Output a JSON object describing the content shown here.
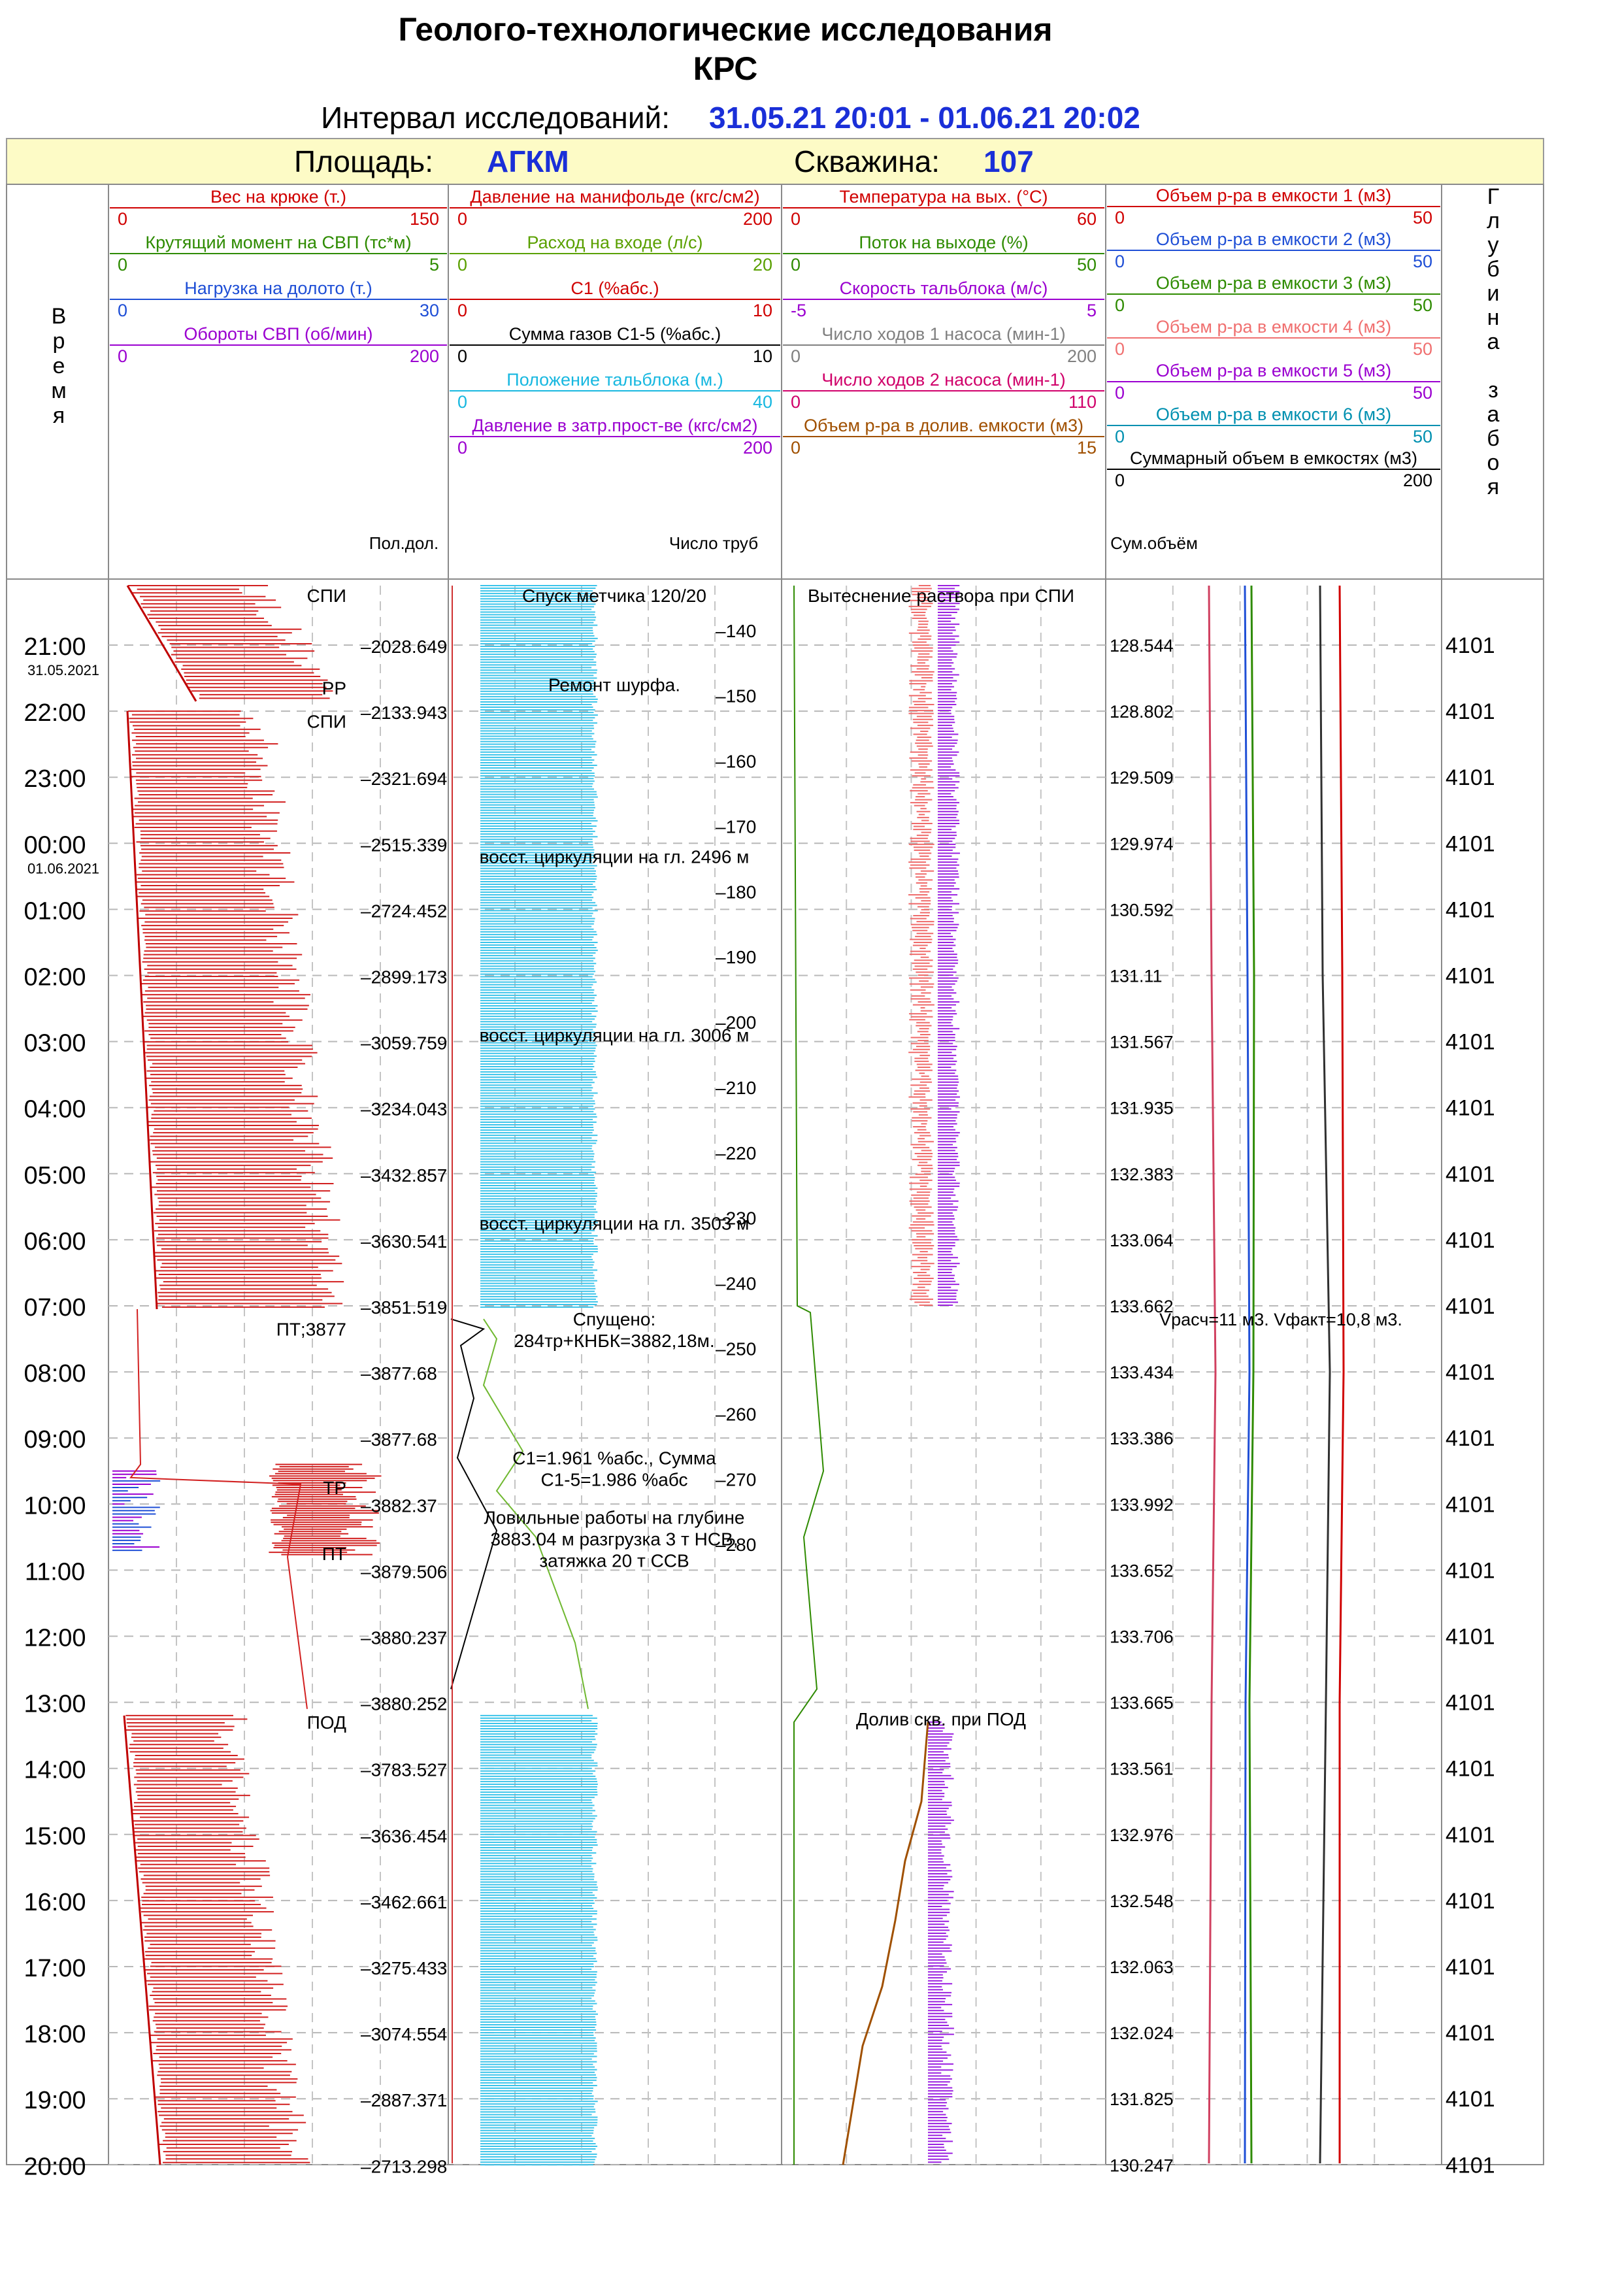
{
  "header": {
    "title1": "Геолого-технологические исследования",
    "title2": "КРС",
    "interval_label": "Интервал исследований:",
    "interval_value": "31.05.21 20:01 - 01.06.21 20:02",
    "area_label": "Площадь:",
    "area_value": "АГКМ",
    "well_label": "Скважина:",
    "well_value": "107"
  },
  "columns": {
    "time_title": [
      "В",
      "р",
      "е",
      "м",
      "я"
    ],
    "depth_title": [
      "Г",
      "л",
      "у",
      "б",
      "и",
      "н",
      "а",
      "",
      "з",
      "а",
      "б",
      "о",
      "я"
    ],
    "track1_footer": "Пол.дол.",
    "track2_footer": "Число труб",
    "track4_footer": "Сум.объём"
  },
  "tracks": [
    {
      "curves": [
        {
          "name": "Вес на крюке  (т.)",
          "min": "0",
          "max": "150",
          "color": "#d00000"
        },
        {
          "name": "Крутящий момент на СВП (тс*м)",
          "min": "0",
          "max": "5",
          "color": "#2e8b00"
        },
        {
          "name": "Нагрузка на долото (т.)",
          "min": "0",
          "max": "30",
          "color": "#1f4fd6"
        },
        {
          "name": "Обороты СВП (об/мин)",
          "min": "0",
          "max": "200",
          "color": "#9b00d0"
        }
      ]
    },
    {
      "curves": [
        {
          "name": "Давление на манифольде (кгс/см2)",
          "min": "0",
          "max": "200",
          "color": "#d00000"
        },
        {
          "name": "Расход на входе (л/с)",
          "min": "0",
          "max": "20",
          "color": "#5aa000"
        },
        {
          "name": "С1 (%абс.)",
          "min": "0",
          "max": "10",
          "color": "#d00000"
        },
        {
          "name": "Сумма газов С1-5 (%абс.)",
          "min": "0",
          "max": "10",
          "color": "#000000"
        },
        {
          "name": "Положение тальблока (м.)",
          "min": "0",
          "max": "40",
          "color": "#18b8e0"
        },
        {
          "name": "Давление в затр.прост-ве (кгс/см2)",
          "min": "0",
          "max": "200",
          "color": "#9b00d0"
        }
      ]
    },
    {
      "curves": [
        {
          "name": "Температура  на вых. (°С)",
          "min": "0",
          "max": "60",
          "color": "#d00000"
        },
        {
          "name": "Поток на выходе (%)",
          "min": "0",
          "max": "50",
          "color": "#2e8b00"
        },
        {
          "name": "Скорость тальблока (м/с)",
          "min": "-5",
          "max": "5",
          "color": "#9b00d0"
        },
        {
          "name": "Число ходов 1 насоса (мин-1)",
          "min": "0",
          "max": "200",
          "color": "#808080"
        },
        {
          "name": "Число ходов 2 насоса (мин-1)",
          "min": "0",
          "max": "110",
          "color": "#d0006a"
        },
        {
          "name": "Объем р-ра в долив. емкости (м3)",
          "min": "0",
          "max": "15",
          "color": "#a05000"
        }
      ]
    },
    {
      "curves": [
        {
          "name": "Объем р-ра в емкости 1 (м3)",
          "min": "0",
          "max": "50",
          "color": "#d00000"
        },
        {
          "name": "Объем р-ра в емкости 2 (м3)",
          "min": "0",
          "max": "50",
          "color": "#1f4fd6"
        },
        {
          "name": "Объем р-ра в емкости 3 (м3)",
          "min": "0",
          "max": "50",
          "color": "#2e8b00"
        },
        {
          "name": "Объем р-ра в емкости 4 (м3)",
          "min": "0",
          "max": "50",
          "color": "#f07070"
        },
        {
          "name": "Объем р-ра в емкости 5 (м3)",
          "min": "0",
          "max": "50",
          "color": "#9b00d0"
        },
        {
          "name": "Объем р-ра в емкости 6 (м3)",
          "min": "0",
          "max": "50",
          "color": "#0090b0"
        },
        {
          "name": "Суммарный объем в емкостях (м3)",
          "min": "0",
          "max": "200",
          "color": "#000000"
        }
      ]
    }
  ],
  "chart_data": {
    "type": "line",
    "y_axis": "time",
    "time_ticks": [
      "21:00",
      "22:00",
      "23:00",
      "00:00",
      "01:00",
      "02:00",
      "03:00",
      "04:00",
      "05:00",
      "06:00",
      "07:00",
      "08:00",
      "09:00",
      "10:00",
      "11:00",
      "12:00",
      "13:00",
      "14:00",
      "15:00",
      "16:00",
      "17:00",
      "18:00",
      "19:00",
      "20:00"
    ],
    "date_labels": [
      {
        "after_tick": "21:00",
        "text": "31.05.2021"
      },
      {
        "after_tick": "00:00",
        "text": "01.06.2021"
      }
    ],
    "bit_position": [
      "2028.649",
      "2133.943",
      "2321.694",
      "2515.339",
      "2724.452",
      "2899.173",
      "3059.759",
      "3234.043",
      "3432.857",
      "3630.541",
      "3851.519",
      "3877.68",
      "3877.68",
      "3882.37",
      "3879.506",
      "3880.237",
      "3880.252",
      "3783.527",
      "3636.454",
      "3462.661",
      "3275.433",
      "3074.554",
      "2887.371",
      "2713.298"
    ],
    "total_volume": [
      "128.544",
      "128.802",
      "129.509",
      "129.974",
      "130.592",
      "131.11",
      "131.567",
      "131.935",
      "132.383",
      "133.064",
      "133.662",
      "133.434",
      "133.386",
      "133.992",
      "133.652",
      "133.706",
      "133.665",
      "133.561",
      "132.976",
      "132.548",
      "132.063",
      "132.024",
      "131.825",
      "130.247"
    ],
    "bottom_depth": [
      "4101",
      "4101",
      "4101",
      "4101",
      "4101",
      "4101",
      "4101",
      "4101",
      "4101",
      "4101",
      "4101",
      "4101",
      "4101",
      "4101",
      "4101",
      "4101",
      "4101",
      "4101",
      "4101",
      "4101",
      "4101",
      "4101",
      "4101",
      "4101"
    ],
    "pipe_count_ticks": [
      "140",
      "150",
      "160",
      "170",
      "180",
      "190",
      "200",
      "210",
      "220",
      "230",
      "240",
      "250",
      "260",
      "270",
      "280"
    ],
    "annotations": {
      "track1": [
        {
          "t": 0.25,
          "text": "СПИ"
        },
        {
          "t": 1.65,
          "text": "РР"
        },
        {
          "t": 2.15,
          "text": "СПИ"
        },
        {
          "t": 11.35,
          "text": "ПТ;3877"
        },
        {
          "t": 13.75,
          "text": "ТР"
        },
        {
          "t": 14.75,
          "text": "ПТ"
        },
        {
          "t": 17.3,
          "text": "ПОД"
        }
      ],
      "track2": [
        {
          "t": 0.25,
          "lines": [
            "Спуск метчика 120/20"
          ]
        },
        {
          "t": 1.6,
          "lines": [
            "Ремонт шурфа."
          ]
        },
        {
          "t": 4.2,
          "lines": [
            "восст. циркуляции на гл. 2496 м"
          ]
        },
        {
          "t": 6.9,
          "lines": [
            "восст. циркуляции на гл. 3006 м"
          ]
        },
        {
          "t": 9.75,
          "lines": [
            "восст. циркуляции на гл. 3503 м"
          ]
        },
        {
          "t": 11.2,
          "lines": [
            "Спущено:",
            "284тр+КНБК=3882,18м."
          ]
        },
        {
          "t": 13.3,
          "lines": [
            "С1=1.961 %абс.,  Сумма",
            "С1-5=1.986 %абс"
          ]
        },
        {
          "t": 14.2,
          "lines": [
            "Ловильные работы на глубине",
            "3883.04 м разгрузка 3 т НСВ,",
            "затяжка 20 т ССВ"
          ]
        }
      ],
      "track3": [
        {
          "t": 0.25,
          "lines": [
            "Вытеснение раствора при СПИ"
          ]
        },
        {
          "t": 17.25,
          "lines": [
            "Долив скв. при ПОД"
          ]
        }
      ],
      "track4": [
        {
          "t": 11.2,
          "lines": [
            "Vрасч=11 м3. Vфакт=10,8 м3."
          ]
        }
      ]
    }
  }
}
